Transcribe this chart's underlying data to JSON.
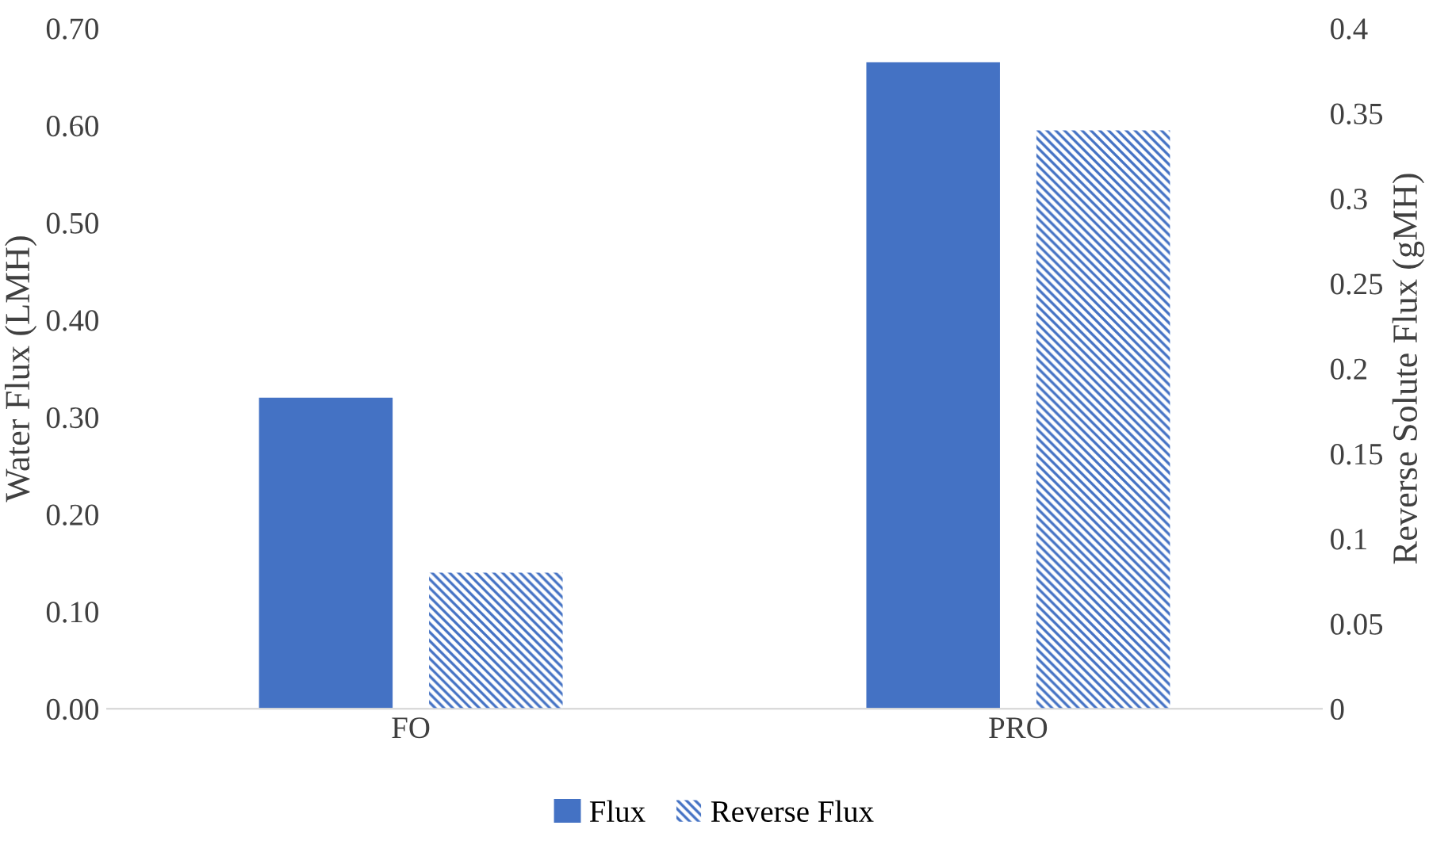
{
  "chart_data": {
    "type": "bar",
    "ylabel": "Water Flux (LMH)",
    "y2label": "Reverse Solute Flux (gMH)",
    "categories": [
      "FO",
      "PRO"
    ],
    "series": [
      {
        "name": "Flux",
        "color": "#4472c4",
        "values": [
          0.32,
          0.665
        ]
      },
      {
        "name": "Reverse Flux",
        "color": "#4472c4",
        "values": [
          0.08,
          0.34
        ],
        "axis": "y2"
      }
    ],
    "ylim": [
      0,
      0.7
    ],
    "yticks": [
      {
        "value": 0,
        "label": "0.00"
      },
      {
        "value": 0.1,
        "label": "0.10"
      },
      {
        "value": 0.2,
        "label": "0.20"
      },
      {
        "value": 0.3,
        "label": "0.30"
      },
      {
        "value": 0.4,
        "label": "0.40"
      },
      {
        "value": 0.5,
        "label": "0.50"
      },
      {
        "value": 0.6,
        "label": "0.60"
      },
      {
        "value": 0.7,
        "label": "0.70"
      }
    ],
    "y2lim": [
      0,
      0.4
    ],
    "y2ticks": [
      0,
      0.05,
      0.1,
      0.15,
      0.2,
      0.25,
      0.3,
      0.35,
      0.4
    ],
    "grid": false,
    "legend": "bottom"
  }
}
